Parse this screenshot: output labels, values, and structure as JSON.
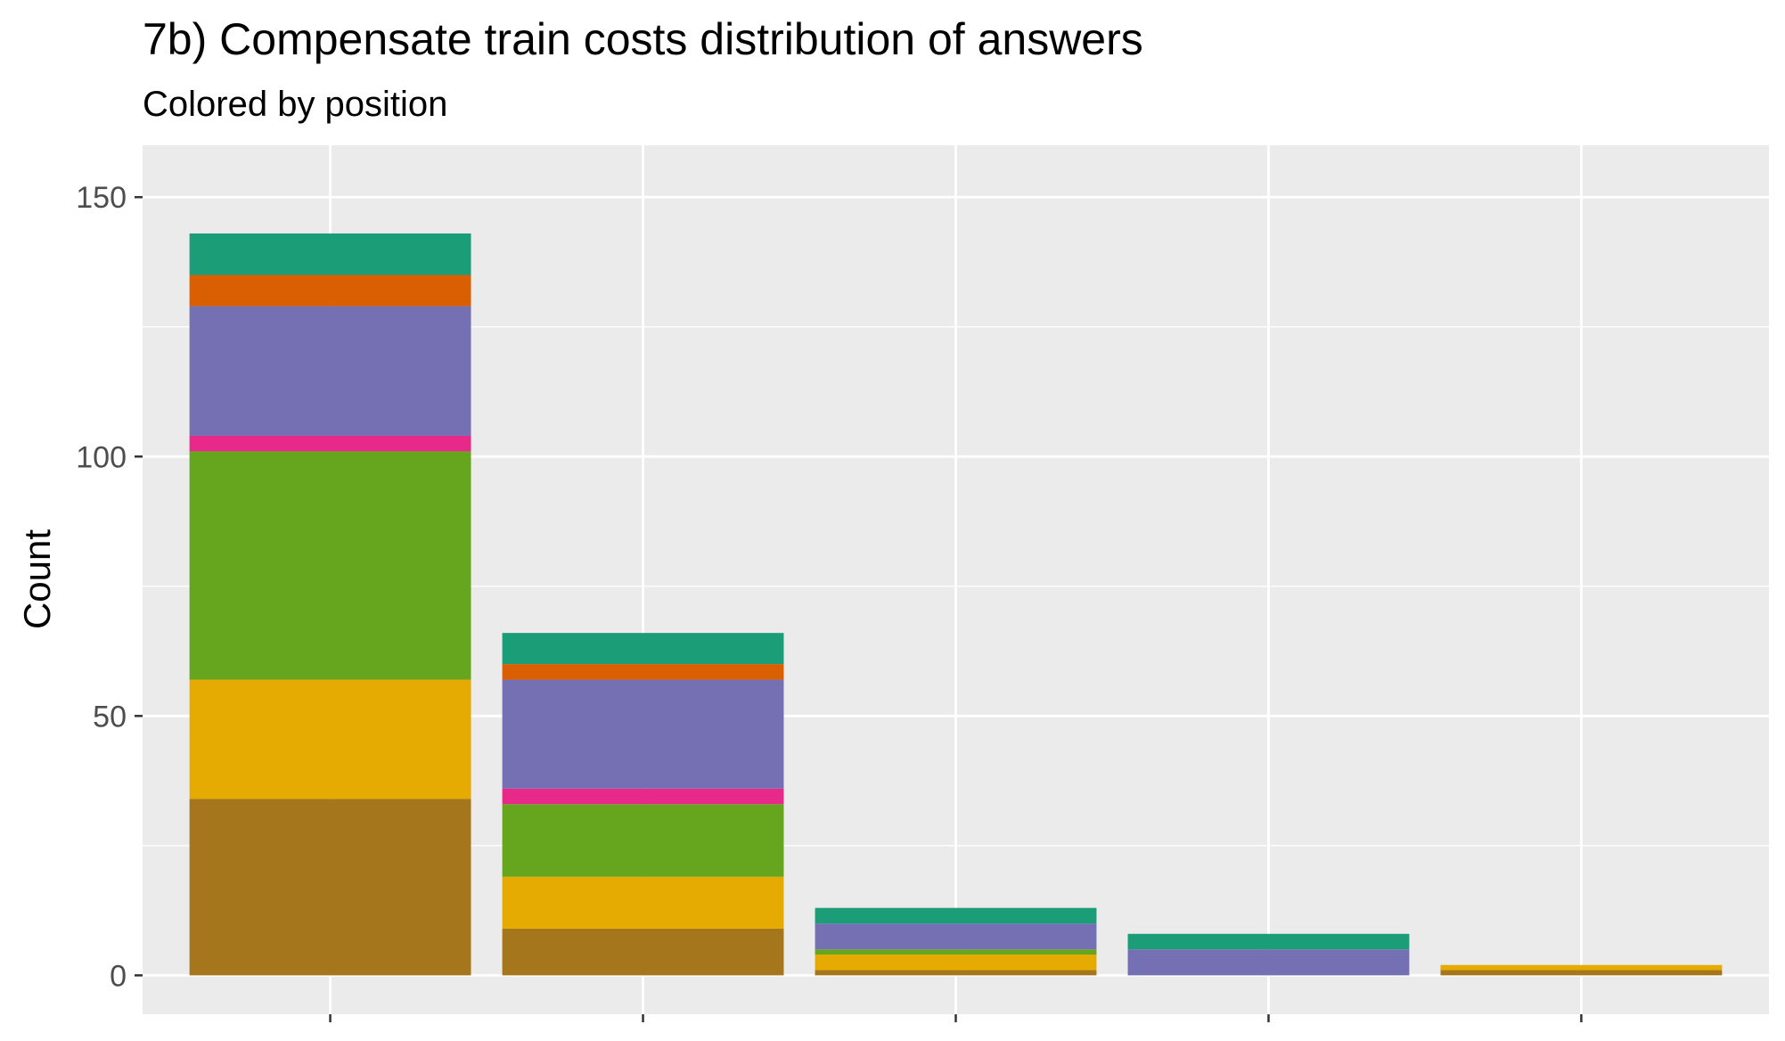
{
  "chart_data": {
    "type": "bar",
    "stacked": true,
    "title": "7b) Compensate train costs distribution of answers",
    "subtitle": "Colored by position",
    "xlabel": "",
    "ylabel": "Count",
    "ylim": [
      -7.5,
      160
    ],
    "yticks": [
      0,
      50,
      100,
      150
    ],
    "grid": true,
    "legend": "none",
    "categories": [
      "",
      "",
      "",
      "",
      ""
    ],
    "series": [
      {
        "color": "#A6761D",
        "values": [
          34,
          9,
          1,
          0,
          1
        ]
      },
      {
        "color": "#E6AB02",
        "values": [
          23,
          10,
          3,
          0,
          1
        ]
      },
      {
        "color": "#66A61E",
        "values": [
          44,
          14,
          1,
          0,
          0
        ]
      },
      {
        "color": "#E7298A",
        "values": [
          3,
          3,
          0,
          0,
          0
        ]
      },
      {
        "color": "#7570B3",
        "values": [
          25,
          21,
          5,
          5,
          0
        ]
      },
      {
        "color": "#D95F02",
        "values": [
          6,
          3,
          0,
          0,
          0
        ]
      },
      {
        "color": "#1B9E77",
        "values": [
          8,
          6,
          3,
          3,
          0
        ]
      }
    ],
    "colors": {
      "panel_background": "#EBEBEB",
      "grid": "#FFFFFF",
      "tick": "#333333"
    }
  }
}
